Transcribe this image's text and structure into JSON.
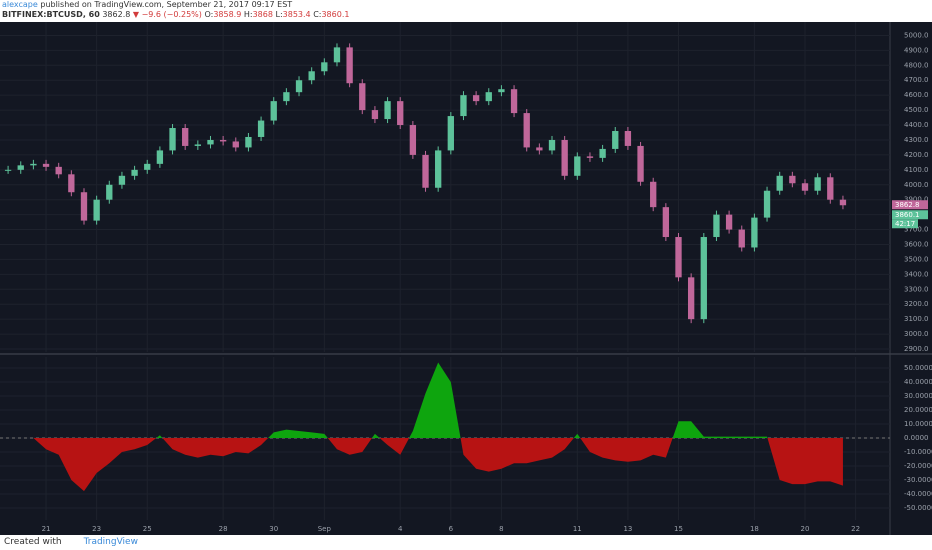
{
  "header": {
    "author": "alexcape",
    "published": "published on TradingView.com, September 21, 2017 09:17 EST",
    "symbol": "BITFINEX:BTCUSD, 60",
    "last": 3862.8,
    "change": "−9.6 (−0.25%)",
    "o_label": "O:",
    "open": 3858.9,
    "h_label": "H:",
    "high": 3868.0,
    "l_label": "L:",
    "low": 3853.4,
    "c_label": "C:",
    "close": 3860.1
  },
  "chart_data": [
    {
      "type": "candlestick",
      "countdown": "42:17",
      "up_color": "#5dc29a",
      "down_color": "#c0679a",
      "x": [
        -1.5,
        -1,
        -0.5,
        0,
        0.5,
        1,
        1.5,
        2,
        2.5,
        3,
        3.5,
        4,
        4.5,
        5,
        5.5,
        6,
        6.5,
        7,
        7.5,
        8,
        8.5,
        9,
        9.5,
        10,
        10.5,
        11,
        11.5,
        12,
        12.5,
        13,
        13.5,
        14,
        14.5,
        15,
        15.5,
        16,
        16.5,
        17,
        17.5,
        18,
        18.5,
        19,
        19.5,
        20,
        20.5,
        21,
        21.5,
        22,
        22.5,
        23,
        23.5,
        24,
        24.5,
        25,
        25.5,
        26,
        26.5,
        27,
        27.5,
        28,
        28.5,
        29,
        29.5,
        30,
        30.5,
        31,
        31.5
      ],
      "values": [
        4100,
        4130,
        4140,
        4120,
        4070,
        3950,
        3760,
        3900,
        4000,
        4060,
        4100,
        4140,
        4230,
        4380,
        4260,
        4270,
        4300,
        4290,
        4250,
        4320,
        4430,
        4560,
        4620,
        4700,
        4760,
        4820,
        4920,
        4680,
        4500,
        4440,
        4560,
        4400,
        4200,
        3980,
        4230,
        4460,
        4600,
        4560,
        4620,
        4640,
        4480,
        4250,
        4230,
        4300,
        4060,
        4190,
        4180,
        4240,
        4360,
        4260,
        4020,
        3850,
        3650,
        3380,
        3100,
        3650,
        3800,
        3700,
        3580,
        3780,
        3960,
        4060,
        4010,
        3960,
        4050,
        3900,
        3862.8
      ],
      "xlim": [
        -1.82,
        33.36
      ],
      "ylim": [
        2880,
        5090
      ],
      "yticks": [
        {
          "value": 2900,
          "label": "2900.0"
        },
        {
          "value": 3000,
          "label": "3000.0"
        },
        {
          "value": 3100,
          "label": "3100.0"
        },
        {
          "value": 3200,
          "label": "3200.0"
        },
        {
          "value": 3300,
          "label": "3300.0"
        },
        {
          "value": 3400,
          "label": "3400.0"
        },
        {
          "value": 3500,
          "label": "3500.0"
        },
        {
          "value": 3600,
          "label": "3600.0"
        },
        {
          "value": 3700,
          "label": "3700.0"
        },
        {
          "value": 3800,
          "label": "3800.0"
        },
        {
          "value": 3900,
          "label": "3900.0"
        },
        {
          "value": 4000,
          "label": "4000.0"
        },
        {
          "value": 4100,
          "label": "4100.0"
        },
        {
          "value": 4200,
          "label": "4200.0"
        },
        {
          "value": 4300,
          "label": "4300.0"
        },
        {
          "value": 4400,
          "label": "4400.0"
        },
        {
          "value": 4500,
          "label": "4500.0"
        },
        {
          "value": 4600,
          "label": "4600.0"
        },
        {
          "value": 4700,
          "label": "4700.0"
        },
        {
          "value": 4800,
          "label": "4800.0"
        },
        {
          "value": 4900,
          "label": "4900.0"
        },
        {
          "value": 5000,
          "label": "5000.0"
        }
      ],
      "grid": true
    },
    {
      "type": "area",
      "pos_color": "#0ea50e",
      "neg_color": "#b71313",
      "x": [
        -1.5,
        -1,
        -0.5,
        0,
        0.5,
        1,
        1.5,
        2,
        2.5,
        3,
        3.5,
        4,
        4.5,
        5,
        5.5,
        6,
        6.5,
        7,
        7.5,
        8,
        8.5,
        9,
        9.5,
        10,
        10.5,
        11,
        11.5,
        12,
        12.5,
        13,
        13.5,
        14,
        14.5,
        15,
        15.5,
        16,
        16.5,
        17,
        17.5,
        18,
        18.5,
        19,
        19.5,
        20,
        20.5,
        21,
        21.5,
        22,
        22.5,
        23,
        23.5,
        24,
        24.5,
        25,
        25.5,
        26,
        26.5,
        27,
        27.5,
        28,
        28.5,
        29,
        29.5,
        30,
        30.5,
        31,
        31.5
      ],
      "values": [
        0,
        0,
        0,
        -8,
        -12,
        -30,
        -38,
        -25,
        -18,
        -10,
        -8,
        -5,
        2,
        -8,
        -12,
        -14,
        -12,
        -13,
        -10,
        -11,
        -5,
        4,
        6,
        5,
        4,
        3,
        -8,
        -12,
        -10,
        3,
        -5,
        -12,
        5,
        32,
        54,
        40,
        -12,
        -22,
        -24,
        -22,
        -18,
        -18,
        -16,
        -14,
        -8,
        3,
        -10,
        -14,
        -16,
        -17,
        -16,
        -12,
        -14,
        12,
        12,
        1,
        1,
        1,
        1,
        1,
        1,
        -30,
        -33,
        -33,
        -31,
        -31,
        -34
      ],
      "xlim": [
        -1.82,
        33.36
      ],
      "ylim": [
        -58.6,
        57.9
      ],
      "yticks": [
        {
          "value": -50,
          "label": "-50.0000"
        },
        {
          "value": -40,
          "label": "-40.0000"
        },
        {
          "value": -30,
          "label": "-30.0000"
        },
        {
          "value": -20,
          "label": "-20.0000"
        },
        {
          "value": -10,
          "label": "-10.0000"
        },
        {
          "value": 0,
          "label": "0.0000"
        },
        {
          "value": 10,
          "label": "10.0000"
        },
        {
          "value": 20,
          "label": "20.0000"
        },
        {
          "value": 30,
          "label": "30.0000"
        },
        {
          "value": 40,
          "label": "40.0000"
        },
        {
          "value": 50,
          "label": "50.0000"
        }
      ],
      "xticks": [
        {
          "value": 0,
          "label": "21"
        },
        {
          "value": 2,
          "label": "23"
        },
        {
          "value": 4,
          "label": "25"
        },
        {
          "value": 7,
          "label": "28"
        },
        {
          "value": 9,
          "label": "30"
        },
        {
          "value": 11,
          "label": "Sep"
        },
        {
          "value": 14,
          "label": "4"
        },
        {
          "value": 16,
          "label": "6"
        },
        {
          "value": 18,
          "label": "8"
        },
        {
          "value": 21,
          "label": "11"
        },
        {
          "value": 23,
          "label": "13"
        },
        {
          "value": 25,
          "label": "15"
        },
        {
          "value": 28,
          "label": "18"
        },
        {
          "value": 30,
          "label": "20"
        },
        {
          "value": 32,
          "label": "22"
        }
      ],
      "grid": true
    }
  ],
  "footer": {
    "created": "Created with",
    "brand": "TradingView"
  }
}
